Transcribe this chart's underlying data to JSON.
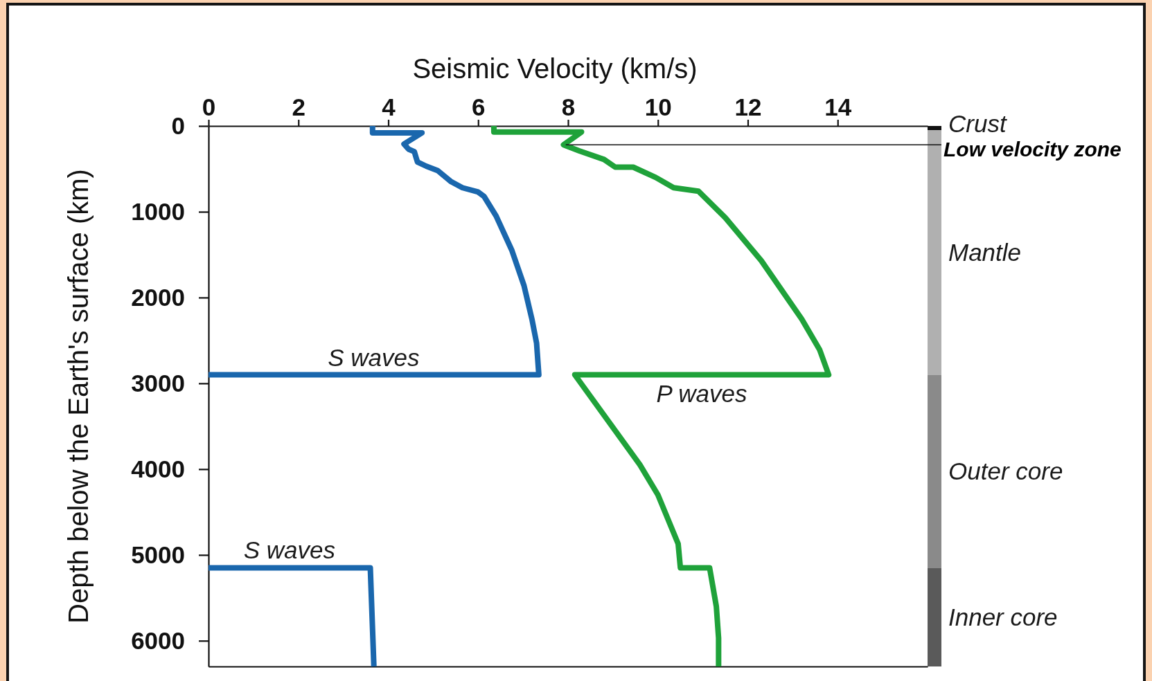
{
  "chart_data": [
    {
      "type": "line",
      "xlabel": "Seismic Velocity (km/s)",
      "ylabel": "Depth below the Earth's surface (km)",
      "xlim": [
        0,
        16
      ],
      "xticks": [
        0,
        2,
        4,
        6,
        8,
        10,
        12,
        14
      ],
      "ylim": [
        6300,
        0
      ],
      "yticks": [
        0,
        1000,
        2000,
        3000,
        4000,
        5000,
        6000
      ],
      "series": [
        {
          "name": "S waves",
          "color": "#1a67ad",
          "x": [
            3.65,
            3.65,
            4.75,
            4.35,
            4.45,
            4.58,
            4.62,
            4.65,
            4.85,
            5.1,
            5.4,
            5.65,
            6.0,
            6.13,
            6.4,
            6.75,
            7.02,
            7.2,
            7.3,
            7.35,
            0,
            null,
            0,
            3.6,
            3.68
          ],
          "values": [
            0,
            80,
            80,
            210,
            270,
            300,
            370,
            420,
            470,
            520,
            650,
            720,
            770,
            820,
            1050,
            1450,
            1860,
            2260,
            2530,
            2900,
            2900,
            null,
            5150,
            5150,
            6300
          ]
        },
        {
          "name": "P waves",
          "color": "#1fa23a",
          "x": [
            6.35,
            6.35,
            8.3,
            7.9,
            8.25,
            8.8,
            9.05,
            9.45,
            9.95,
            10.35,
            10.9,
            11.5,
            12.3,
            13.2,
            13.6,
            13.8,
            8.15,
            9.6,
            10.0,
            10.45,
            10.5,
            11.15,
            11.3,
            11.35,
            11.35
          ],
          "values": [
            0,
            70,
            70,
            220,
            290,
            390,
            480,
            480,
            600,
            720,
            760,
            1070,
            1570,
            2250,
            2610,
            2900,
            2900,
            3950,
            4300,
            4870,
            5150,
            5150,
            5600,
            5970,
            6300
          ]
        }
      ],
      "annotations": [
        {
          "text": "Low velocity zone",
          "x": 7.95,
          "y": 220
        }
      ],
      "line_style": "solid"
    },
    {
      "type": "bar",
      "stacked": true,
      "categories": [
        null
      ],
      "ylim": [
        6300,
        0
      ],
      "tick_labels": false,
      "series": [
        {
          "name": "Crust",
          "color": "#111111",
          "values": [
            50
          ]
        },
        {
          "name": "Mantle",
          "color": "#b0b0b0",
          "values": [
            2850
          ]
        },
        {
          "name": "Outer core",
          "color": "#8a8a8a",
          "values": [
            2250
          ]
        },
        {
          "name": "Inner core",
          "color": "#5a5a5a",
          "values": [
            1150
          ]
        }
      ]
    }
  ]
}
